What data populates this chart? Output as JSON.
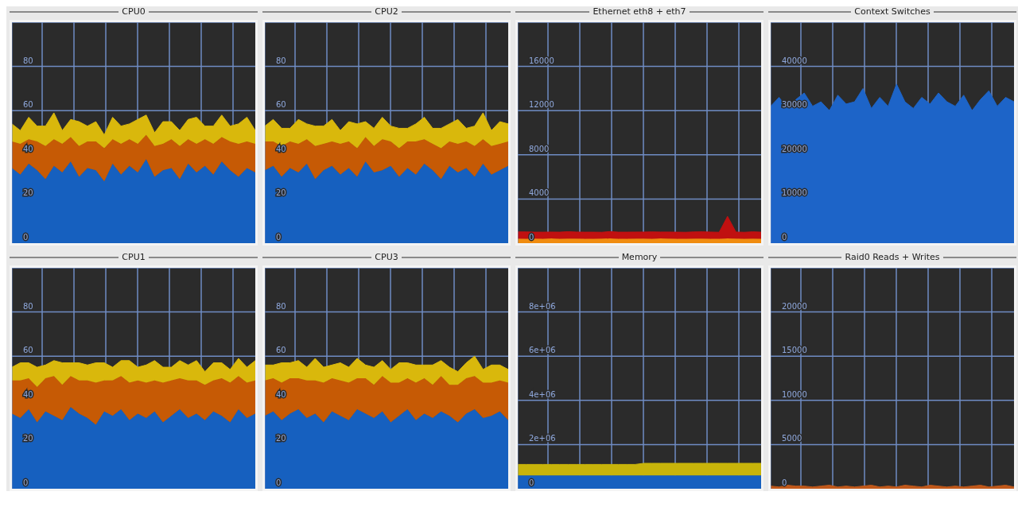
{
  "chart_data": [
    {
      "type": "area",
      "title": "CPU0",
      "stacked": true,
      "grid": true,
      "tick_labels": "y",
      "categories": [
        null,
        null,
        null,
        null,
        null,
        null,
        null,
        null,
        null,
        null,
        null,
        null,
        null,
        null,
        null,
        null,
        null,
        null,
        null,
        null,
        null,
        null,
        null,
        null,
        null,
        null,
        null,
        null,
        null,
        null
      ],
      "ylim": [
        0,
        100
      ],
      "yticks": [
        0,
        20,
        40,
        60,
        80
      ],
      "series": [
        {
          "color": "#1660bf",
          "values": [
            34,
            31,
            36,
            33,
            29,
            35,
            32,
            37,
            30,
            34,
            33,
            28,
            36,
            31,
            35,
            32,
            38,
            30,
            33,
            34,
            29,
            36,
            32,
            35,
            31,
            37,
            33,
            30,
            34,
            32
          ]
        },
        {
          "color": "#c65a05",
          "values": [
            12,
            14,
            11,
            13,
            15,
            12,
            13,
            11,
            14,
            12,
            13,
            15,
            11,
            14,
            12,
            13,
            11,
            14,
            12,
            13,
            15,
            11,
            13,
            12,
            14,
            11,
            13,
            15,
            12,
            13
          ]
        },
        {
          "color": "#d9b80c",
          "values": [
            8,
            6,
            10,
            7,
            9,
            12,
            6,
            8,
            11,
            7,
            9,
            6,
            10,
            8,
            7,
            11,
            9,
            6,
            10,
            8,
            7,
            9,
            12,
            6,
            8,
            10,
            7,
            9,
            11,
            6
          ]
        }
      ]
    },
    {
      "type": "area",
      "title": "CPU2",
      "stacked": true,
      "grid": true,
      "tick_labels": "y",
      "categories": [
        null,
        null,
        null,
        null,
        null,
        null,
        null,
        null,
        null,
        null,
        null,
        null,
        null,
        null,
        null,
        null,
        null,
        null,
        null,
        null,
        null,
        null,
        null,
        null,
        null,
        null,
        null,
        null,
        null,
        null
      ],
      "ylim": [
        0,
        100
      ],
      "yticks": [
        0,
        20,
        40,
        60,
        80
      ],
      "series": [
        {
          "color": "#1660bf",
          "values": [
            33,
            35,
            30,
            34,
            32,
            36,
            29,
            33,
            35,
            31,
            34,
            30,
            37,
            32,
            33,
            35,
            30,
            34,
            31,
            36,
            33,
            29,
            35,
            32,
            34,
            30,
            36,
            31,
            33,
            35
          ]
        },
        {
          "color": "#c65a05",
          "values": [
            13,
            11,
            14,
            12,
            13,
            11,
            15,
            12,
            11,
            14,
            12,
            13,
            11,
            12,
            14,
            11,
            13,
            12,
            15,
            11,
            12,
            14,
            11,
            13,
            12,
            14,
            11,
            13,
            12,
            11
          ]
        },
        {
          "color": "#d9b80c",
          "values": [
            7,
            10,
            8,
            6,
            11,
            7,
            9,
            8,
            10,
            6,
            9,
            11,
            7,
            8,
            10,
            7,
            9,
            6,
            8,
            10,
            7,
            9,
            8,
            11,
            6,
            9,
            12,
            7,
            10,
            8
          ]
        }
      ]
    },
    {
      "type": "area",
      "title": "Ethernet eth8 + eth7",
      "stacked": true,
      "grid": true,
      "tick_labels": "y",
      "categories": [
        null,
        null,
        null,
        null,
        null,
        null,
        null,
        null,
        null,
        null,
        null,
        null,
        null,
        null,
        null,
        null,
        null,
        null,
        null,
        null,
        null,
        null,
        null,
        null,
        null,
        null,
        null,
        null,
        null,
        null
      ],
      "ylim": [
        0,
        20000
      ],
      "yticks": [
        0,
        4000,
        8000,
        12000,
        16000
      ],
      "series": [
        {
          "color": "#f08c10",
          "values": [
            420,
            400,
            410,
            390,
            430,
            400,
            410,
            420,
            390,
            400,
            410,
            430,
            400,
            390,
            420,
            410,
            400,
            430,
            410,
            390,
            400,
            420,
            410,
            400,
            390,
            430,
            410,
            400,
            420,
            400
          ]
        },
        {
          "color": "#c01010",
          "values": [
            600,
            620,
            590,
            610,
            580,
            600,
            630,
            590,
            610,
            600,
            580,
            620,
            600,
            610,
            590,
            600,
            620,
            580,
            600,
            610,
            590,
            600,
            620,
            610,
            600,
            2000,
            600,
            590,
            610,
            600
          ]
        }
      ]
    },
    {
      "type": "area",
      "title": "Context Switches",
      "grid": true,
      "tick_labels": "y",
      "categories": [
        null,
        null,
        null,
        null,
        null,
        null,
        null,
        null,
        null,
        null,
        null,
        null,
        null,
        null,
        null,
        null,
        null,
        null,
        null,
        null,
        null,
        null,
        null,
        null,
        null,
        null,
        null,
        null,
        null,
        null
      ],
      "ylim": [
        0,
        50000
      ],
      "yticks": [
        0,
        10000,
        20000,
        30000,
        40000
      ],
      "series": [
        {
          "color": "#1d64c8",
          "values": [
            31000,
            33000,
            30500,
            32500,
            34000,
            31000,
            32000,
            30000,
            33500,
            31500,
            32000,
            35000,
            30500,
            33000,
            31000,
            36000,
            32000,
            30500,
            33000,
            31500,
            34000,
            32000,
            31000,
            33500,
            30000,
            32500,
            34500,
            31000,
            33000,
            32000
          ]
        }
      ]
    },
    {
      "type": "area",
      "title": "CPU1",
      "stacked": true,
      "grid": true,
      "tick_labels": "y",
      "categories": [
        null,
        null,
        null,
        null,
        null,
        null,
        null,
        null,
        null,
        null,
        null,
        null,
        null,
        null,
        null,
        null,
        null,
        null,
        null,
        null,
        null,
        null,
        null,
        null,
        null,
        null,
        null,
        null,
        null,
        null
      ],
      "ylim": [
        0,
        100
      ],
      "yticks": [
        0,
        20,
        40,
        60,
        80
      ],
      "series": [
        {
          "color": "#1660bf",
          "values": [
            34,
            32,
            36,
            30,
            35,
            33,
            31,
            37,
            34,
            32,
            29,
            35,
            33,
            36,
            31,
            34,
            32,
            35,
            30,
            33,
            36,
            32,
            34,
            31,
            35,
            33,
            30,
            36,
            32,
            34
          ]
        },
        {
          "color": "#c65a05",
          "values": [
            15,
            17,
            14,
            16,
            15,
            18,
            16,
            14,
            15,
            17,
            19,
            14,
            16,
            15,
            17,
            15,
            16,
            14,
            18,
            16,
            14,
            17,
            15,
            16,
            14,
            17,
            18,
            15,
            16,
            15
          ]
        },
        {
          "color": "#d9b80c",
          "values": [
            6,
            8,
            7,
            9,
            6,
            7,
            10,
            6,
            8,
            7,
            9,
            8,
            6,
            7,
            10,
            6,
            8,
            9,
            7,
            6,
            8,
            7,
            9,
            6,
            8,
            7,
            6,
            8,
            7,
            9
          ]
        }
      ]
    },
    {
      "type": "area",
      "title": "CPU3",
      "stacked": true,
      "grid": true,
      "tick_labels": "y",
      "categories": [
        null,
        null,
        null,
        null,
        null,
        null,
        null,
        null,
        null,
        null,
        null,
        null,
        null,
        null,
        null,
        null,
        null,
        null,
        null,
        null,
        null,
        null,
        null,
        null,
        null,
        null,
        null,
        null,
        null,
        null
      ],
      "ylim": [
        0,
        100
      ],
      "yticks": [
        0,
        20,
        40,
        60,
        80
      ],
      "series": [
        {
          "color": "#1660bf",
          "values": [
            33,
            35,
            31,
            34,
            36,
            32,
            34,
            30,
            35,
            33,
            31,
            36,
            34,
            32,
            35,
            30,
            33,
            36,
            31,
            34,
            32,
            35,
            33,
            30,
            34,
            36,
            32,
            33,
            35,
            31
          ]
        },
        {
          "color": "#c65a05",
          "values": [
            16,
            15,
            17,
            16,
            14,
            17,
            15,
            18,
            15,
            16,
            17,
            14,
            16,
            15,
            16,
            18,
            15,
            14,
            17,
            16,
            15,
            16,
            14,
            17,
            16,
            15,
            16,
            15,
            14,
            17
          ]
        },
        {
          "color": "#d9b80c",
          "values": [
            7,
            6,
            9,
            7,
            8,
            6,
            10,
            7,
            6,
            8,
            7,
            9,
            6,
            8,
            7,
            6,
            9,
            7,
            8,
            6,
            9,
            7,
            8,
            6,
            7,
            9,
            6,
            8,
            7,
            6
          ]
        }
      ]
    },
    {
      "type": "area",
      "title": "Memory",
      "stacked": true,
      "grid": true,
      "tick_labels": "y",
      "categories": [
        null,
        null,
        null,
        null,
        null,
        null,
        null,
        null,
        null,
        null,
        null,
        null,
        null,
        null,
        null,
        null,
        null,
        null,
        null,
        null,
        null,
        null,
        null,
        null,
        null,
        null,
        null,
        null,
        null,
        null
      ],
      "ylim": [
        0,
        10000000
      ],
      "yticks": [
        {
          "value": 0,
          "label": "0"
        },
        {
          "value": 2000000,
          "label": "2e+06"
        },
        {
          "value": 4000000,
          "label": "4e+06"
        },
        {
          "value": 6000000,
          "label": "6e+06"
        },
        {
          "value": 8000000,
          "label": "8e+06"
        }
      ],
      "series": [
        {
          "color": "#1660bf",
          "values": [
            600000,
            600000,
            600000,
            600000,
            600000,
            600000,
            600000,
            600000,
            600000,
            600000,
            600000,
            600000,
            600000,
            600000,
            600000,
            600000,
            600000,
            600000,
            600000,
            600000,
            600000,
            600000,
            600000,
            600000,
            600000,
            600000,
            600000,
            600000,
            600000,
            600000
          ]
        },
        {
          "color": "#c8b40a",
          "values": [
            500000,
            500000,
            500000,
            500000,
            500000,
            500000,
            500000,
            500000,
            500000,
            500000,
            500000,
            500000,
            500000,
            500000,
            500000,
            550000,
            550000,
            550000,
            550000,
            550000,
            550000,
            550000,
            550000,
            550000,
            550000,
            550000,
            550000,
            550000,
            550000,
            550000
          ]
        }
      ]
    },
    {
      "type": "area",
      "title": "Raid0 Reads + Writes",
      "grid": true,
      "tick_labels": "y",
      "categories": [
        null,
        null,
        null,
        null,
        null,
        null,
        null,
        null,
        null,
        null,
        null,
        null,
        null,
        null,
        null,
        null,
        null,
        null,
        null,
        null,
        null,
        null,
        null,
        null,
        null,
        null,
        null,
        null,
        null,
        null
      ],
      "ylim": [
        0,
        25000
      ],
      "yticks": [
        0,
        5000,
        10000,
        15000,
        20000
      ],
      "series": [
        {
          "color": "#c0581a",
          "values": [
            300,
            200,
            400,
            300,
            300,
            200,
            300,
            400,
            200,
            300,
            200,
            300,
            400,
            200,
            300,
            200,
            400,
            300,
            200,
            400,
            300,
            200,
            300,
            200,
            300,
            400,
            200,
            300,
            400,
            200
          ]
        }
      ]
    }
  ]
}
